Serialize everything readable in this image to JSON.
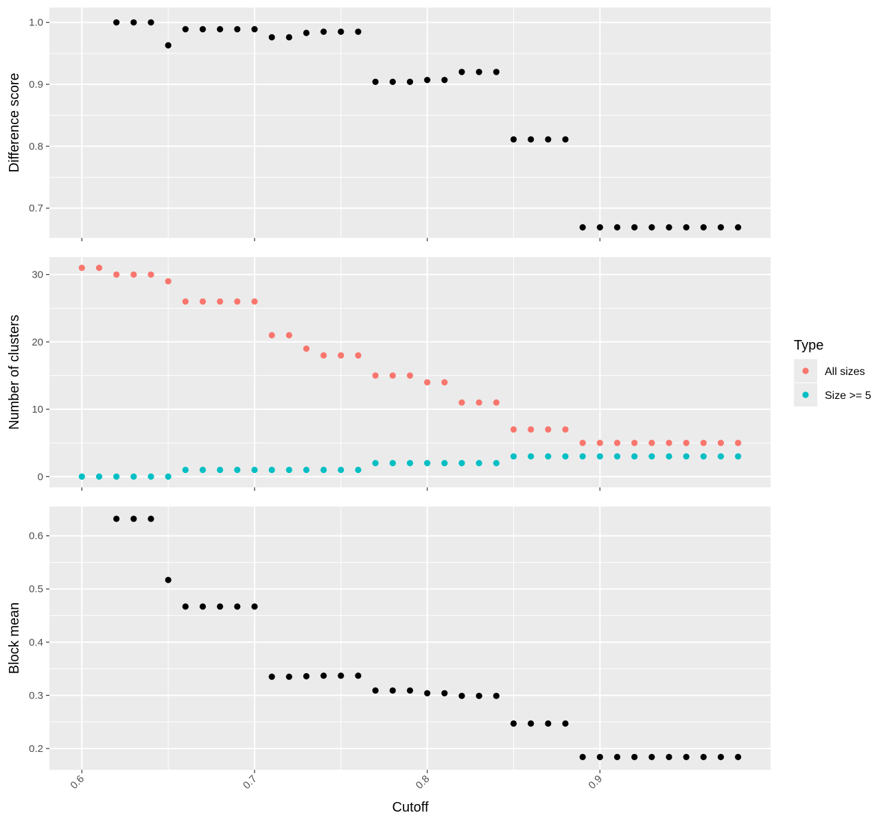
{
  "chart_data": {
    "type": "scatter",
    "layout": "three stacked panels sharing x axis",
    "xlabel": "Cutoff",
    "x_ticks": [
      0.6,
      0.7,
      0.8,
      0.9
    ],
    "x_tick_labels": [
      "0.6",
      "0.7",
      "0.8",
      "0.9"
    ],
    "xlim": [
      0.5812,
      0.9988
    ],
    "grid": true,
    "legend": {
      "title": "Type",
      "placement": "right",
      "entries": [
        {
          "label": "All sizes",
          "color": "#F8766D"
        },
        {
          "label": "Size >= 5",
          "color": "#00BFC4"
        }
      ]
    },
    "colors": {
      "panel_background": "#EBEBEB",
      "grid": "#FFFFFF",
      "point": "#000000",
      "all_sizes": "#F8766D",
      "size_ge_5": "#00BFC4"
    },
    "panels": [
      {
        "ylabel": "Difference score",
        "ylim": [
          0.652,
          1.024
        ],
        "y_ticks": [
          0.7,
          0.8,
          0.9,
          1.0
        ],
        "y_tick_labels": [
          "0.7",
          "0.8",
          "0.9",
          "1.0"
        ],
        "series": [
          {
            "color": "#000000",
            "x": [
              0.62,
              0.63,
              0.64,
              0.65,
              0.66,
              0.67,
              0.68,
              0.69,
              0.7,
              0.71,
              0.72,
              0.73,
              0.74,
              0.75,
              0.76,
              0.77,
              0.78,
              0.79,
              0.8,
              0.81,
              0.82,
              0.83,
              0.84,
              0.85,
              0.86,
              0.87,
              0.88,
              0.89,
              0.9,
              0.91,
              0.92,
              0.93,
              0.94,
              0.95,
              0.96,
              0.97,
              0.98
            ],
            "y": [
              1.0,
              1.0,
              1.0,
              0.963,
              0.989,
              0.989,
              0.989,
              0.989,
              0.989,
              0.976,
              0.976,
              0.983,
              0.985,
              0.985,
              0.985,
              0.904,
              0.904,
              0.904,
              0.907,
              0.907,
              0.92,
              0.92,
              0.92,
              0.811,
              0.811,
              0.811,
              0.811,
              0.669,
              0.669,
              0.669,
              0.669,
              0.669,
              0.669,
              0.669,
              0.669,
              0.669,
              0.669
            ]
          }
        ]
      },
      {
        "ylabel": "Number of clusters",
        "ylim": [
          -1.6,
          32.6
        ],
        "y_ticks": [
          0,
          10,
          20,
          30
        ],
        "y_tick_labels": [
          "0",
          "10",
          "20",
          "30"
        ],
        "series": [
          {
            "name": "All sizes",
            "color": "#F8766D",
            "x": [
              0.6,
              0.61,
              0.62,
              0.63,
              0.64,
              0.65,
              0.66,
              0.67,
              0.68,
              0.69,
              0.7,
              0.71,
              0.72,
              0.73,
              0.74,
              0.75,
              0.76,
              0.77,
              0.78,
              0.79,
              0.8,
              0.81,
              0.82,
              0.83,
              0.84,
              0.85,
              0.86,
              0.87,
              0.88,
              0.89,
              0.9,
              0.91,
              0.92,
              0.93,
              0.94,
              0.95,
              0.96,
              0.97,
              0.98
            ],
            "y": [
              31,
              31,
              30,
              30,
              30,
              29,
              26,
              26,
              26,
              26,
              26,
              21,
              21,
              19,
              18,
              18,
              18,
              15,
              15,
              15,
              14,
              14,
              11,
              11,
              11,
              7,
              7,
              7,
              7,
              5,
              5,
              5,
              5,
              5,
              5,
              5,
              5,
              5,
              5
            ]
          },
          {
            "name": "Size >= 5",
            "color": "#00BFC4",
            "x": [
              0.6,
              0.61,
              0.62,
              0.63,
              0.64,
              0.65,
              0.66,
              0.67,
              0.68,
              0.69,
              0.7,
              0.71,
              0.72,
              0.73,
              0.74,
              0.75,
              0.76,
              0.77,
              0.78,
              0.79,
              0.8,
              0.81,
              0.82,
              0.83,
              0.84,
              0.85,
              0.86,
              0.87,
              0.88,
              0.89,
              0.9,
              0.91,
              0.92,
              0.93,
              0.94,
              0.95,
              0.96,
              0.97,
              0.98
            ],
            "y": [
              0,
              0,
              0,
              0,
              0,
              0,
              1,
              1,
              1,
              1,
              1,
              1,
              1,
              1,
              1,
              1,
              1,
              2,
              2,
              2,
              2,
              2,
              2,
              2,
              2,
              3,
              3,
              3,
              3,
              3,
              3,
              3,
              3,
              3,
              3,
              3,
              3,
              3,
              3
            ]
          }
        ]
      },
      {
        "ylabel": "Block mean",
        "ylim": [
          0.16,
          0.655
        ],
        "y_ticks": [
          0.2,
          0.3,
          0.4,
          0.5,
          0.6
        ],
        "y_tick_labels": [
          "0.2",
          "0.3",
          "0.4",
          "0.5",
          "0.6"
        ],
        "series": [
          {
            "color": "#000000",
            "x": [
              0.62,
              0.63,
              0.64,
              0.65,
              0.66,
              0.67,
              0.68,
              0.69,
              0.7,
              0.71,
              0.72,
              0.73,
              0.74,
              0.75,
              0.76,
              0.77,
              0.78,
              0.79,
              0.8,
              0.81,
              0.82,
              0.83,
              0.84,
              0.85,
              0.86,
              0.87,
              0.88,
              0.89,
              0.9,
              0.91,
              0.92,
              0.93,
              0.94,
              0.95,
              0.96,
              0.97,
              0.98
            ],
            "y": [
              0.632,
              0.632,
              0.632,
              0.517,
              0.467,
              0.467,
              0.467,
              0.467,
              0.467,
              0.335,
              0.335,
              0.336,
              0.337,
              0.337,
              0.337,
              0.309,
              0.309,
              0.309,
              0.304,
              0.304,
              0.299,
              0.299,
              0.299,
              0.247,
              0.247,
              0.247,
              0.247,
              0.184,
              0.184,
              0.184,
              0.184,
              0.184,
              0.184,
              0.184,
              0.184,
              0.184,
              0.184
            ]
          }
        ]
      }
    ]
  }
}
